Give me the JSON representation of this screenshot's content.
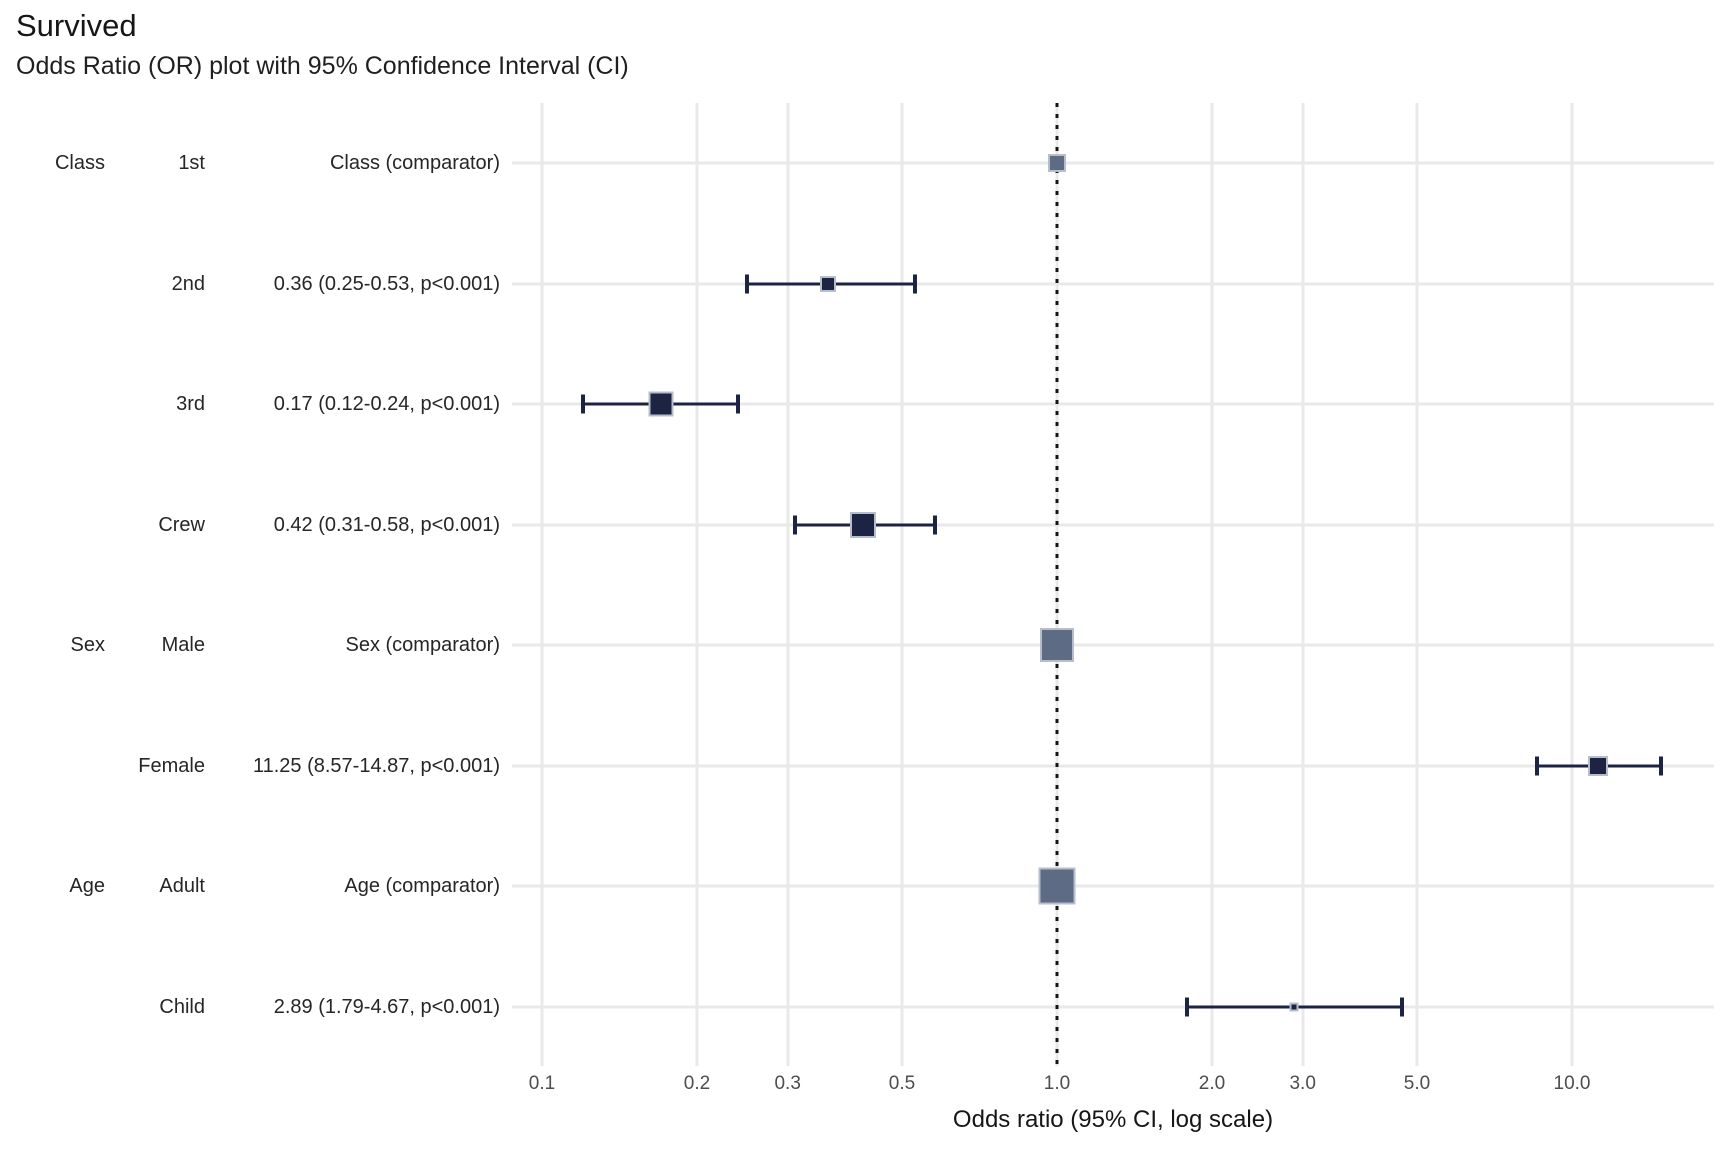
{
  "title": "Survived",
  "subtitle": "Odds Ratio (OR) plot with 95% Confidence Interval (CI)",
  "axis": {
    "label": "Odds ratio (95% CI, log scale)",
    "tick_labels": [
      "0.1",
      "0.2",
      "0.3",
      "0.5",
      "1.0",
      "2.0",
      "3.0",
      "5.0",
      "10.0"
    ],
    "tick_values": [
      0.1,
      0.2,
      0.3,
      0.5,
      1.0,
      2.0,
      3.0,
      5.0,
      10.0
    ],
    "reference_value": 1.0,
    "scale": "log"
  },
  "colors": {
    "estimate_fill": "#1c2343",
    "comparator_fill": "#5d6b85",
    "square_border": "#b6bdcb",
    "gridline": "#e9e9e9",
    "reference_line": "#141414",
    "tick_label": "#4d4d4d",
    "text": "#262626"
  },
  "chart_data": {
    "type": "forest",
    "title": "Survived",
    "subtitle": "Odds Ratio (OR) plot with 95% Confidence Interval (CI)",
    "xlabel": "Odds ratio (95% CI, log scale)",
    "x_scale": "log",
    "xlim": [
      0.09,
      16
    ],
    "grid": true,
    "rows": [
      {
        "group": "Class",
        "level": "1st",
        "estimate_label": "Class (comparator)",
        "or": 1.0,
        "lo": null,
        "hi": null,
        "comparator": true,
        "size": 18
      },
      {
        "group": "",
        "level": "2nd",
        "estimate_label": "0.36 (0.25-0.53, p<0.001)",
        "or": 0.36,
        "lo": 0.25,
        "hi": 0.53,
        "comparator": false,
        "size": 16
      },
      {
        "group": "",
        "level": "3rd",
        "estimate_label": "0.17 (0.12-0.24, p<0.001)",
        "or": 0.17,
        "lo": 0.12,
        "hi": 0.24,
        "comparator": false,
        "size": 25
      },
      {
        "group": "",
        "level": "Crew",
        "estimate_label": "0.42 (0.31-0.58, p<0.001)",
        "or": 0.42,
        "lo": 0.31,
        "hi": 0.58,
        "comparator": false,
        "size": 26
      },
      {
        "group": "Sex",
        "level": "Male",
        "estimate_label": "Sex (comparator)",
        "or": 1.0,
        "lo": null,
        "hi": null,
        "comparator": true,
        "size": 34
      },
      {
        "group": "",
        "level": "Female",
        "estimate_label": "11.25 (8.57-14.87, p<0.001)",
        "or": 11.25,
        "lo": 8.57,
        "hi": 14.87,
        "comparator": false,
        "size": 20
      },
      {
        "group": "Age",
        "level": "Adult",
        "estimate_label": "Age (comparator)",
        "or": 1.0,
        "lo": null,
        "hi": null,
        "comparator": true,
        "size": 37
      },
      {
        "group": "",
        "level": "Child",
        "estimate_label": "2.89 (1.79-4.67, p<0.001)",
        "or": 2.89,
        "lo": 1.79,
        "hi": 4.67,
        "comparator": false,
        "size": 9
      }
    ]
  }
}
